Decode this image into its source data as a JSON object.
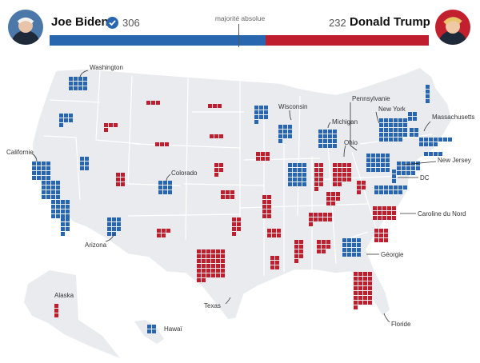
{
  "header": {
    "biden": {
      "name": "Joe Biden",
      "votes": "306"
    },
    "trump": {
      "name": "Donald Trump",
      "votes": "232"
    },
    "majority_label": "majorité absolue",
    "total_votes": 538,
    "colors": {
      "dem": "#2866b0",
      "rep": "#be1e2d"
    }
  },
  "labels": {
    "washington": "Washington",
    "californie": "Californie",
    "arizona": "Arizona",
    "colorado": "Colorado",
    "wisconsin": "Wisconsin",
    "michigan": "Michigan",
    "pennsylvanie": "Pennsylvanie",
    "new_york": "New York",
    "ohio": "Ohio",
    "massachusetts": "Massachusetts",
    "new_jersey": "New Jersey",
    "dc": "DC",
    "caroline_du_nord": "Caroline du Nord",
    "georgie": "Géorgie",
    "texas": "Texas",
    "floride": "Floride",
    "alaska": "Alaska",
    "hawai": "Hawaï"
  }
}
